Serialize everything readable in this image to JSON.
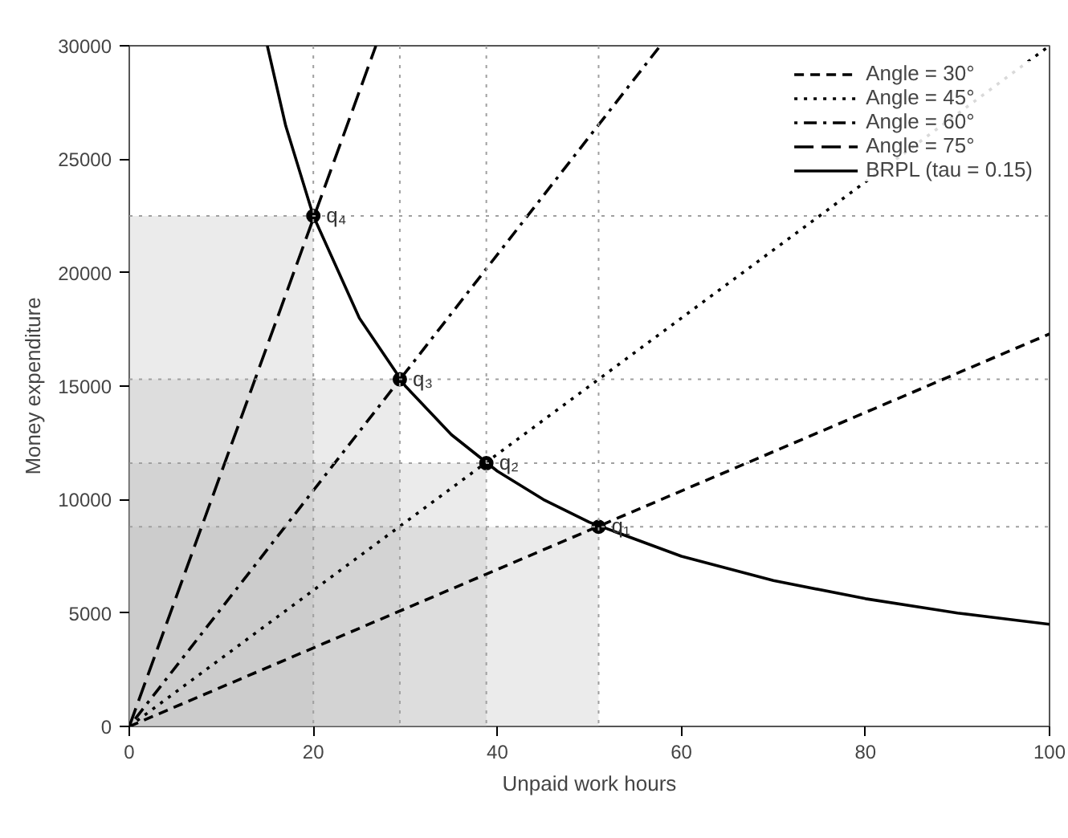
{
  "chart_data": {
    "type": "line",
    "xlabel": "Unpaid work hours",
    "ylabel": "Money expenditure",
    "xlim": [
      0,
      100
    ],
    "ylim": [
      0,
      30000
    ],
    "xticks": [
      0,
      20,
      40,
      60,
      80,
      100
    ],
    "yticks": [
      0,
      5000,
      10000,
      15000,
      20000,
      25000,
      30000
    ],
    "grid": false,
    "legend": "top right",
    "marker": "none",
    "series": [
      {
        "type": "area",
        "color": "#bdbdbd",
        "x": [
          0,
          51
        ],
        "values": [
          8800,
          8800
        ]
      },
      {
        "type": "area",
        "color": "#bdbdbd",
        "x": [
          0,
          38.8
        ],
        "values": [
          11600,
          11600
        ]
      },
      {
        "type": "area",
        "color": "#bdbdbd",
        "x": [
          0,
          29.4
        ],
        "values": [
          15300,
          15300
        ]
      },
      {
        "type": "area",
        "color": "#bdbdbd",
        "x": [
          0,
          20
        ],
        "values": [
          22500,
          22500
        ]
      },
      {
        "name": "Angle = 30°",
        "color": "#000000",
        "line_style": "dashed",
        "x": [
          0,
          100
        ],
        "values": [
          0,
          17300
        ]
      },
      {
        "name": "Angle = 45°",
        "color": "#000000",
        "line_style": "dotted",
        "x": [
          0,
          100
        ],
        "values": [
          0,
          30000
        ]
      },
      {
        "name": "Angle = 60°",
        "color": "#000000",
        "line_style": "dashdot",
        "x": [
          0,
          57.7
        ],
        "values": [
          0,
          30000
        ]
      },
      {
        "name": "Angle = 75°",
        "color": "#000000",
        "line_style": "longdash",
        "x": [
          0,
          26.8
        ],
        "values": [
          0,
          30000
        ]
      },
      {
        "name": "BRPL (tau = 0.15)",
        "color": "#000000",
        "line_style": "solid",
        "x": [
          15,
          17,
          20,
          25,
          30,
          35,
          40,
          45,
          50,
          60,
          70,
          80,
          90,
          100
        ],
        "values": [
          30000,
          26470,
          22500,
          18000,
          15000,
          12860,
          11250,
          10000,
          9000,
          7500,
          6430,
          5630,
          5000,
          4500
        ]
      },
      {
        "type": "scatter",
        "marker": "circle",
        "color": "#000000",
        "x": [
          51,
          38.8,
          29.4,
          20
        ],
        "values": [
          8800,
          11600,
          15300,
          22500
        ]
      }
    ],
    "ref_lines": [
      {
        "axis": "x",
        "value": 20,
        "color": "#a0a0a0",
        "line_style": "dotted"
      },
      {
        "axis": "x",
        "value": 29.4,
        "color": "#a0a0a0",
        "line_style": "dotted"
      },
      {
        "axis": "x",
        "value": 38.8,
        "color": "#a0a0a0",
        "line_style": "dotted"
      },
      {
        "axis": "x",
        "value": 51,
        "color": "#a0a0a0",
        "line_style": "dotted"
      },
      {
        "axis": "y",
        "value": 8800,
        "color": "#a0a0a0",
        "line_style": "dotted"
      },
      {
        "axis": "y",
        "value": 11600,
        "color": "#a0a0a0",
        "line_style": "dotted"
      },
      {
        "axis": "y",
        "value": 15300,
        "color": "#a0a0a0",
        "line_style": "dotted"
      },
      {
        "axis": "y",
        "value": 22500,
        "color": "#a0a0a0",
        "line_style": "dotted"
      }
    ],
    "annotations": [
      {
        "text": "q₁",
        "x": 51,
        "y": 8800
      },
      {
        "text": "q₂",
        "x": 38.8,
        "y": 11600
      },
      {
        "text": "q₃",
        "x": 29.4,
        "y": 15300
      },
      {
        "text": "q₄",
        "x": 20,
        "y": 22500
      }
    ]
  }
}
